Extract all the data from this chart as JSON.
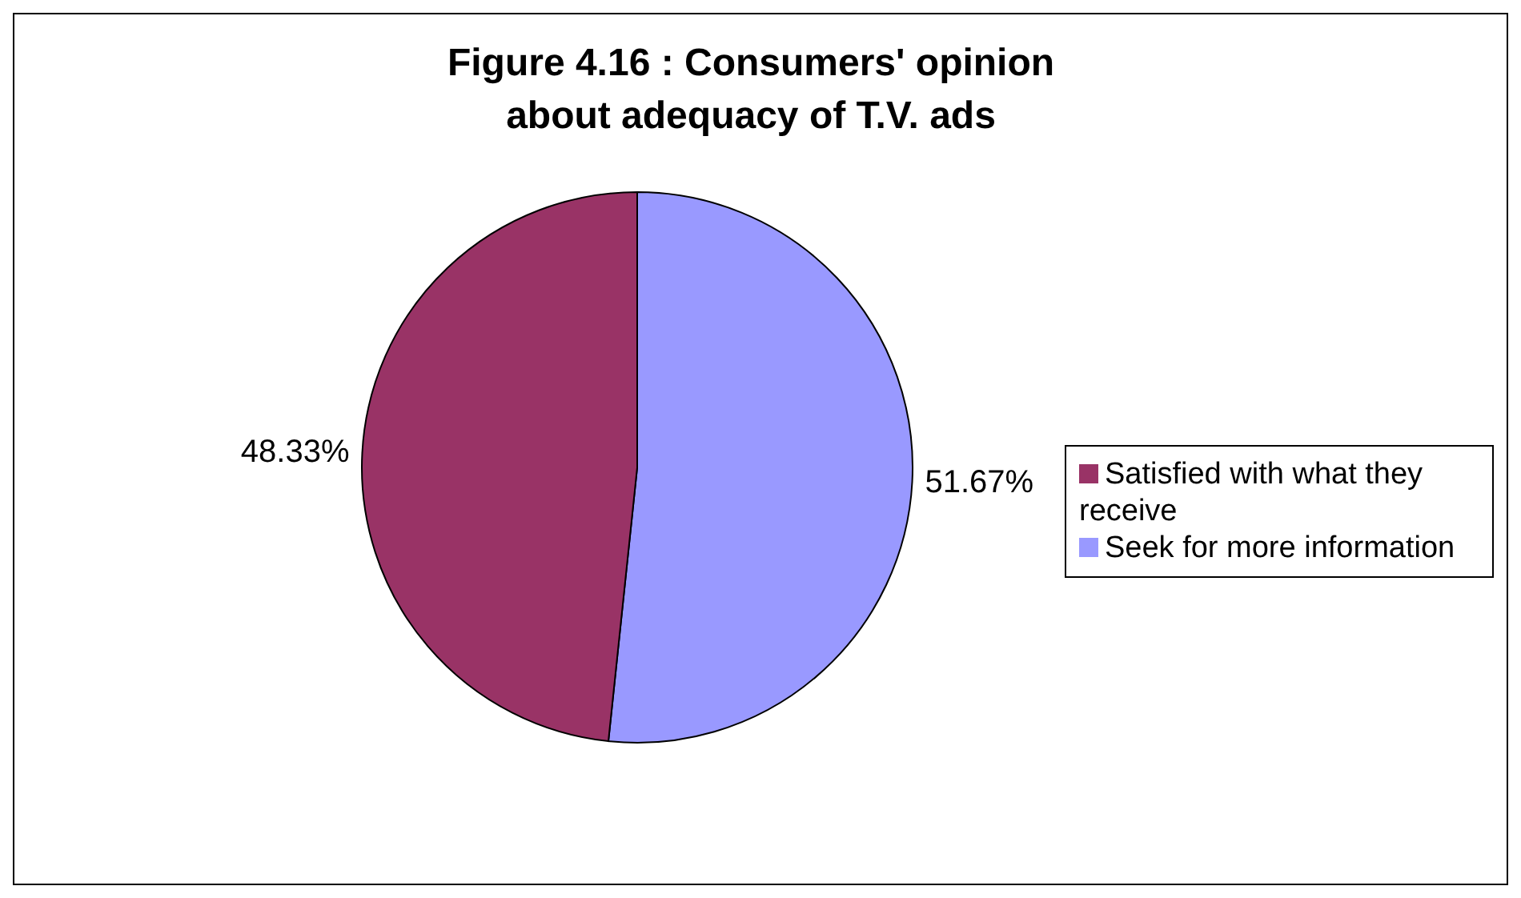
{
  "chart_data": {
    "type": "pie",
    "title": "Figure 4.16 : Consumers' opinion about adequacy of T.V. ads",
    "categories": [
      "Seek for more information",
      "Satisfied with what they receive"
    ],
    "values": [
      51.67,
      48.33
    ],
    "colors": [
      "#9999ff",
      "#993366"
    ],
    "value_labels": [
      "51.67%",
      "48.33%"
    ],
    "legend": "right"
  }
}
